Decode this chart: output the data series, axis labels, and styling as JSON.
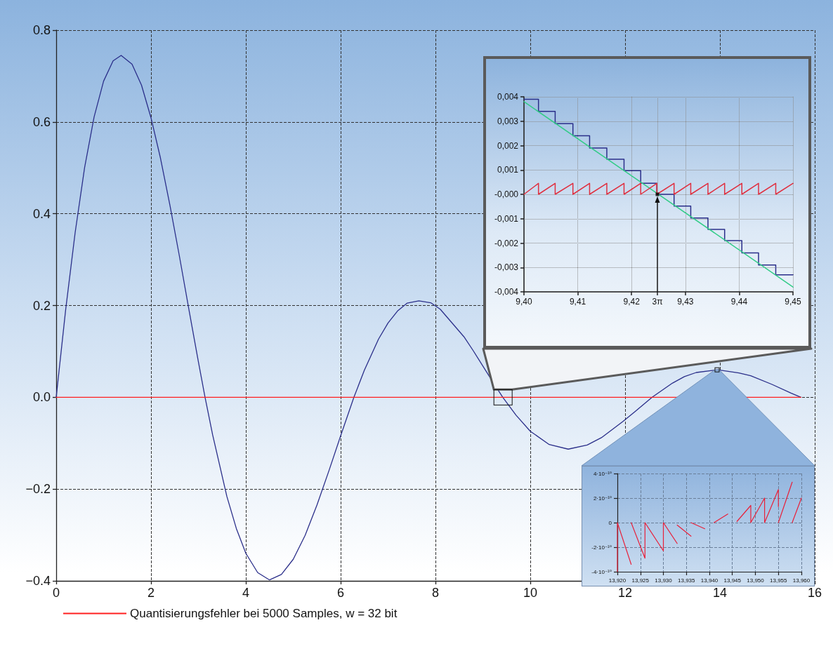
{
  "chart_data": [
    {
      "type": "line",
      "xlim": [
        0,
        16
      ],
      "ylim": [
        -0.4,
        0.8
      ],
      "xticks": [
        0,
        2,
        4,
        6,
        8,
        10,
        12,
        14,
        16
      ],
      "yticks": [
        {
          "value": -0.4,
          "label": "−0.4"
        },
        {
          "value": -0.2,
          "label": "−0.2"
        },
        {
          "value": 0,
          "label": "0.0"
        },
        0.2,
        0.4,
        0.6,
        0.8
      ],
      "grid": true,
      "legend": "bottom",
      "marker": "none",
      "series": [
        {
          "color": "#2b2f8a",
          "x": [
            0,
            0.2,
            0.4,
            0.6,
            0.8,
            1.0,
            1.2,
            1.37,
            1.6,
            1.8,
            2.0,
            2.2,
            2.4,
            2.6,
            2.8,
            3.0,
            3.14,
            3.3,
            3.6,
            3.8,
            4.0,
            4.25,
            4.5,
            4.75,
            5.0,
            5.25,
            5.5,
            5.75,
            6.0,
            6.28,
            6.5,
            6.8,
            7.0,
            7.2,
            7.4,
            7.65,
            7.9,
            8.1,
            8.6,
            8.8,
            9.2,
            9.42,
            9.7,
            10.0,
            10.4,
            10.8,
            11.2,
            11.5,
            11.95,
            12.2,
            12.57,
            13.0,
            13.25,
            13.5,
            13.95,
            14.4,
            14.65,
            15.1,
            15.5,
            15.71
          ],
          "values": [
            0,
            0.191,
            0.359,
            0.501,
            0.611,
            0.689,
            0.733,
            0.745,
            0.726,
            0.68,
            0.609,
            0.521,
            0.418,
            0.307,
            0.191,
            0.077,
            0,
            -0.082,
            -0.216,
            -0.286,
            -0.34,
            -0.382,
            -0.398,
            -0.386,
            -0.353,
            -0.301,
            -0.235,
            -0.161,
            -0.084,
            0,
            0.059,
            0.127,
            0.162,
            0.188,
            0.205,
            0.21,
            0.206,
            0.192,
            0.132,
            0.101,
            0.035,
            0,
            -0.039,
            -0.074,
            -0.103,
            -0.113,
            -0.104,
            -0.088,
            -0.053,
            -0.032,
            0,
            0.031,
            0.045,
            0.054,
            0.06,
            0.053,
            0.047,
            0.028,
            0.009,
            0
          ]
        },
        {
          "name": "Quantisierungsfehler bei 5000 Samples, w = 32 bit",
          "color": "#ff2020",
          "x": [
            0,
            15.71
          ],
          "values": [
            0,
            0
          ]
        }
      ]
    },
    {
      "type": "line",
      "xlim": [
        9.4,
        9.45
      ],
      "ylim": [
        -0.004,
        0.004
      ],
      "xticks": [
        {
          "value": 9.4,
          "label": "9,40"
        },
        {
          "value": 9.41,
          "label": "9,41"
        },
        {
          "value": 9.42,
          "label": "9,42"
        },
        {
          "value": 9.4248,
          "label": "3π"
        },
        {
          "value": 9.43,
          "label": "9,43"
        },
        {
          "value": 9.44,
          "label": "9,44"
        },
        {
          "value": 9.45,
          "label": "9,45"
        }
      ],
      "yticks": [
        {
          "value": -0.004,
          "label": "-0,004"
        },
        {
          "value": -0.003,
          "label": "-0,003"
        },
        {
          "value": -0.002,
          "label": "-0,002"
        },
        {
          "value": -0.001,
          "label": "-0,001"
        },
        {
          "value": 0,
          "label": "-0,000"
        },
        {
          "value": 0.001,
          "label": "0,001"
        },
        {
          "value": 0.002,
          "label": "0,002"
        },
        {
          "value": 0.003,
          "label": "0,003"
        },
        {
          "value": 0.004,
          "label": "0,004"
        }
      ],
      "grid": true,
      "marker": "none",
      "series": [
        {
          "type": "step",
          "color": "#2b2f8a",
          "x": [
            9.4,
            9.4027,
            9.4058,
            9.4091,
            9.4122,
            9.4154,
            9.4186,
            9.4217,
            9.4247,
            9.4279,
            9.431,
            9.4342,
            9.4373,
            9.4405,
            9.4436,
            9.4468,
            9.45
          ],
          "values": [
            0.0039,
            0.0034,
            0.0029,
            0.0024,
            0.0019,
            0.00144,
            0.00097,
            0.00045,
            0,
            -0.00048,
            -0.00097,
            -0.00144,
            -0.0019,
            -0.0024,
            -0.0029,
            -0.0033,
            -0.0033
          ]
        },
        {
          "color": "#33cc88",
          "x": [
            9.4,
            9.45
          ],
          "values": [
            0.0038,
            -0.0038
          ]
        },
        {
          "color": "#e03040",
          "x": [
            9.4,
            9.4027,
            9.4027,
            9.4058,
            9.4058,
            9.4091,
            9.4091,
            9.4122,
            9.4122,
            9.4154,
            9.4154,
            9.4186,
            9.4186,
            9.4217,
            9.4217,
            9.4247,
            9.4247,
            9.4279,
            9.4279,
            9.431,
            9.431,
            9.4342,
            9.4342,
            9.4373,
            9.4373,
            9.4405,
            9.4405,
            9.4436,
            9.4436,
            9.4468,
            9.4468,
            9.45
          ],
          "values": [
            0,
            0.00045,
            0,
            0.00045,
            0,
            0.00045,
            0,
            0.00045,
            0,
            0.00045,
            0,
            0.00045,
            0,
            0.00045,
            0,
            0.00045,
            0,
            0.00045,
            0,
            0.00045,
            0,
            0.00045,
            0,
            0.00045,
            0,
            0.00045,
            0,
            0.00045,
            0,
            0.00045,
            0,
            0.00045
          ]
        },
        {
          "type": "scatter",
          "marker": "square",
          "color": "#000000",
          "x": [
            9.4248
          ],
          "values": [
            0
          ]
        }
      ]
    },
    {
      "type": "line",
      "xlim": [
        13.92,
        13.96
      ],
      "ylim": [
        -4e-10,
        4e-10
      ],
      "xticks": [
        {
          "value": 13.92,
          "label": "13,920"
        },
        {
          "value": 13.925,
          "label": "13,925"
        },
        {
          "value": 13.93,
          "label": "13,930"
        },
        {
          "value": 13.935,
          "label": "13,935"
        },
        {
          "value": 13.94,
          "label": "13,940"
        },
        {
          "value": 13.945,
          "label": "13,945"
        },
        {
          "value": 13.95,
          "label": "13,950"
        },
        {
          "value": 13.955,
          "label": "13,955"
        },
        {
          "value": 13.96,
          "label": "13,960"
        }
      ],
      "yticks": [
        {
          "value": -4e-10,
          "label": "-4·10⁻¹⁰"
        },
        {
          "value": -2e-10,
          "label": "-2·10⁻¹⁰"
        },
        0,
        {
          "value": 2e-10,
          "label": "2·10⁻¹⁰"
        },
        {
          "value": 4e-10,
          "label": "4·10⁻¹⁰"
        }
      ],
      "grid": true,
      "marker": "none",
      "series": [
        {
          "color": "#e8203a",
          "x": [
            13.92,
            13.92,
            13.923,
            null,
            13.923,
            13.926,
            13.926,
            13.93,
            13.93,
            13.933,
            null,
            13.933,
            13.936,
            null,
            13.936,
            13.939,
            null,
            13.941,
            13.944,
            null,
            13.946,
            13.949,
            13.949,
            13.952,
            13.952,
            13.955,
            13.955,
            null,
            13.955,
            13.958,
            null,
            13.958,
            13.96
          ],
          "values": [
            -4e-10,
            0,
            -3.4e-10,
            null,
            0,
            -2.9e-10,
            0,
            -2.3e-10,
            0,
            -1.7e-10,
            null,
            -2e-11,
            -1.1e-10,
            null,
            0,
            -5e-11,
            null,
            0,
            7e-11,
            null,
            1e-11,
            1.4e-10,
            0,
            2e-10,
            0,
            2.7e-10,
            1.3e-10,
            null,
            0,
            3.3e-10,
            null,
            0,
            2e-10
          ]
        }
      ]
    }
  ]
}
